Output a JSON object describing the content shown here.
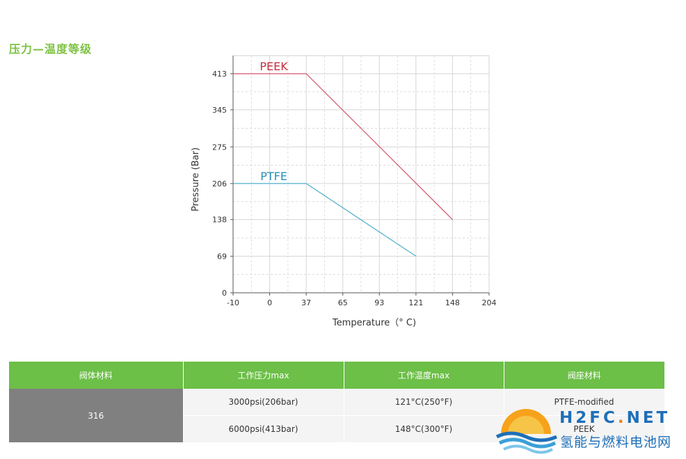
{
  "section_title": "压力—温度等级",
  "chart_data": {
    "type": "line",
    "xlabel": "Temperature（° C)",
    "ylabel": "Pressure (Bar)",
    "x_ticks": [
      -10,
      0,
      37,
      65,
      93,
      121,
      148,
      204
    ],
    "y_ticks": [
      0,
      69,
      138,
      206,
      275,
      345,
      413
    ],
    "grid": true,
    "series": [
      {
        "name": "PEEK",
        "color": "#d4546a",
        "label_color": "#c62e3c",
        "points": [
          [
            -10,
            413
          ],
          [
            37,
            413
          ],
          [
            148,
            138
          ]
        ]
      },
      {
        "name": "PTFE",
        "color": "#4fb0cc",
        "label_color": "#2a8fba",
        "points": [
          [
            -10,
            206
          ],
          [
            37,
            206
          ],
          [
            121,
            69
          ]
        ]
      }
    ]
  },
  "table": {
    "headers": [
      "阀体材料",
      "工作压力max",
      "工作温度max",
      "阀座材料"
    ],
    "body_material": "316",
    "rows": [
      {
        "pressure": "3000psi(206bar)",
        "temperature": "121°C(250°F)",
        "seat": "PTFE-modified"
      },
      {
        "pressure": "6000psi(413bar)",
        "temperature": "148°C(300°F)",
        "seat": "PEEK"
      }
    ]
  },
  "watermark": {
    "latin_a": "H2FC",
    "latin_dot": ".",
    "latin_b": "NET",
    "chinese": "氢能与燃料电池网",
    "colors": {
      "blue": "#1e6fb8",
      "orange": "#ef7d1a"
    }
  }
}
